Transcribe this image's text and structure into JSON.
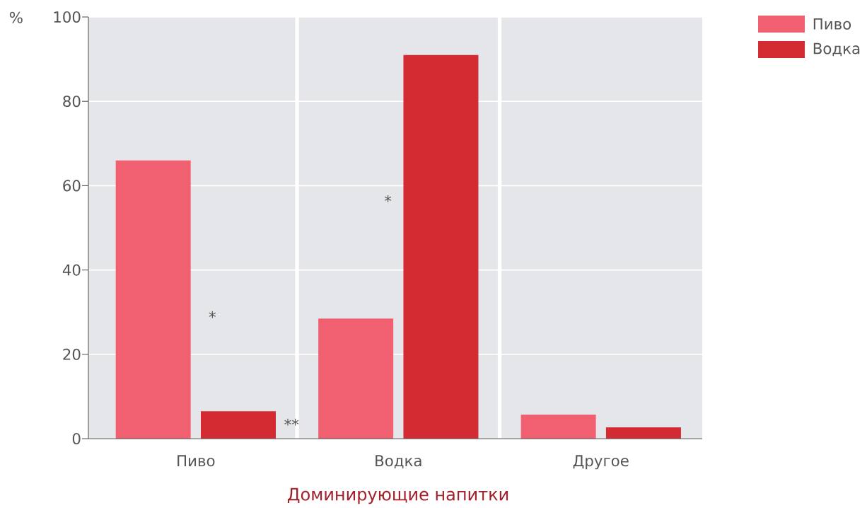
{
  "chart_data": {
    "type": "bar",
    "xlabel": "Доминирующие напитки",
    "ylabel": "%",
    "categories": [
      "Пиво",
      "Водка",
      "Другое"
    ],
    "series": [
      {
        "name": "Пиво",
        "color": "#f06070",
        "values": [
          66,
          28.5,
          5.7
        ]
      },
      {
        "name": "Водка",
        "color": "#d42b33",
        "values": [
          6.5,
          91,
          2.7
        ]
      }
    ],
    "ylim": [
      0,
      100
    ],
    "yticks": [
      0,
      20,
      40,
      60,
      80,
      100
    ],
    "grid": "y",
    "legend": "top right",
    "annotations": [
      "*",
      "*",
      "**"
    ]
  }
}
